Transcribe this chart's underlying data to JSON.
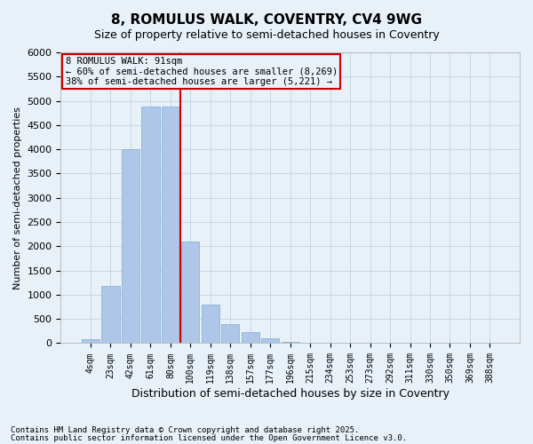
{
  "title": "8, ROMULUS WALK, COVENTRY, CV4 9WG",
  "subtitle": "Size of property relative to semi-detached houses in Coventry",
  "xlabel": "Distribution of semi-detached houses by size in Coventry",
  "ylabel": "Number of semi-detached properties",
  "property_label": "8 ROMULUS WALK: 91sqm",
  "annotation_line": "← 60% of semi-detached houses are smaller (8,269)",
  "annotation_line2": "38% of semi-detached houses are larger (5,221) →",
  "bins": [
    "4sqm",
    "23sqm",
    "42sqm",
    "61sqm",
    "80sqm",
    "100sqm",
    "119sqm",
    "138sqm",
    "157sqm",
    "177sqm",
    "196sqm",
    "215sqm",
    "234sqm",
    "253sqm",
    "273sqm",
    "292sqm",
    "311sqm",
    "330sqm",
    "350sqm",
    "369sqm",
    "388sqm"
  ],
  "values": [
    75,
    1175,
    4000,
    4875,
    4875,
    2100,
    800,
    400,
    225,
    100,
    30,
    5,
    2,
    1,
    0,
    0,
    0,
    0,
    0,
    0,
    0
  ],
  "bar_color": "#aec6e8",
  "bar_edge_color": "#7badd4",
  "vline_color": "#cc0000",
  "vline_x": 4.5,
  "ylim": [
    0,
    6000
  ],
  "yticks": [
    0,
    500,
    1000,
    1500,
    2000,
    2500,
    3000,
    3500,
    4000,
    4500,
    5000,
    5500,
    6000
  ],
  "grid_color": "#c8d8e8",
  "bg_color": "#e8f0f8",
  "footnote1": "Contains HM Land Registry data © Crown copyright and database right 2025.",
  "footnote2": "Contains public sector information licensed under the Open Government Licence v3.0."
}
